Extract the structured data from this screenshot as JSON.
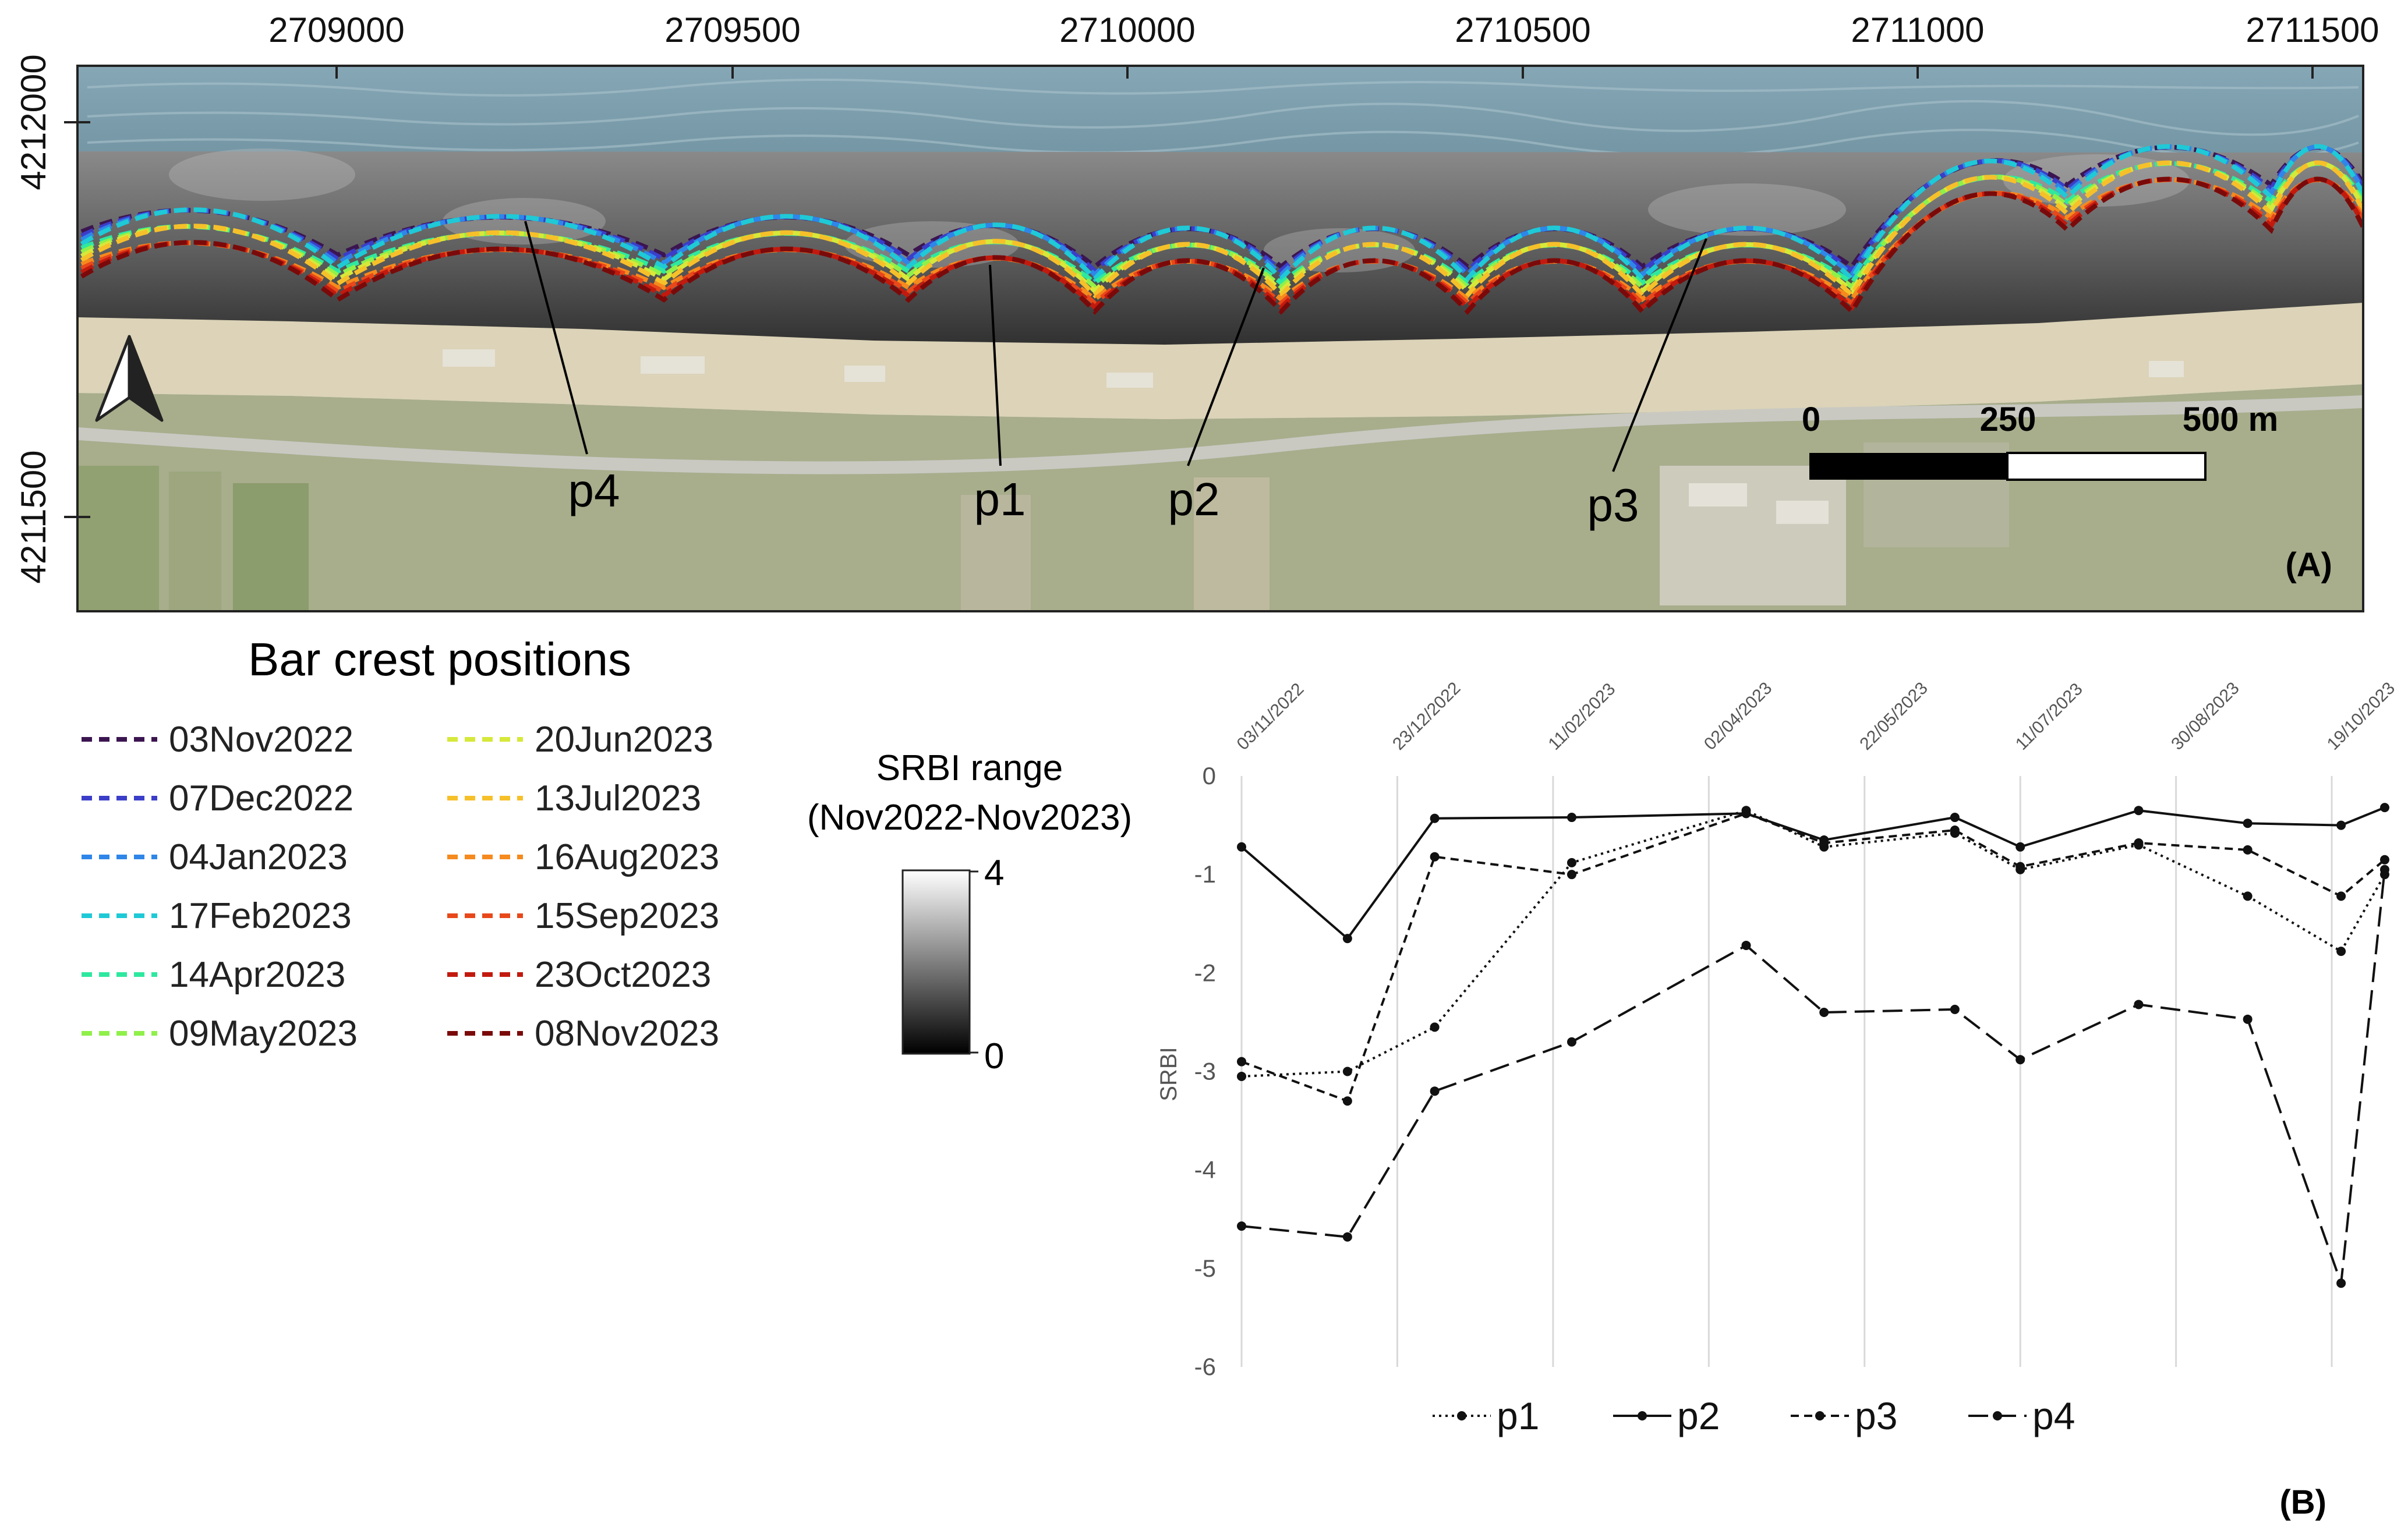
{
  "map": {
    "panel_label": "(A)",
    "x_ticks": [
      "2709000",
      "2709500",
      "2710000",
      "2710500",
      "2711000",
      "2711500"
    ],
    "y_ticks": [
      "4212000",
      "4211500"
    ],
    "scale_bar": {
      "labels": [
        "0",
        "250",
        "500 m"
      ]
    },
    "profiles": [
      "p4",
      "p1",
      "p2",
      "p3"
    ],
    "north_arrow": "north-arrow-icon"
  },
  "legend": {
    "title": "Bar crest positions",
    "entries": [
      {
        "label": "03Nov2022",
        "color": "#3b1550"
      },
      {
        "label": "07Dec2022",
        "color": "#3b3ec8"
      },
      {
        "label": "04Jan2023",
        "color": "#2f86e8"
      },
      {
        "label": "17Feb2023",
        "color": "#1fc9d6"
      },
      {
        "label": "14Apr2023",
        "color": "#2ee8a0"
      },
      {
        "label": "09May2023",
        "color": "#8ff04a"
      },
      {
        "label": "20Jun2023",
        "color": "#d6e83a"
      },
      {
        "label": "13Jul2023",
        "color": "#f6c02a"
      },
      {
        "label": "16Aug2023",
        "color": "#f58a1e"
      },
      {
        "label": "15Sep2023",
        "color": "#e8481a"
      },
      {
        "label": "23Oct2023",
        "color": "#c21a0e"
      },
      {
        "label": "08Nov2023",
        "color": "#7a0a0a"
      }
    ]
  },
  "colorbar": {
    "title_line1": "SRBI range",
    "title_line2": "(Nov2022-Nov2023)",
    "max": "4",
    "min": "0"
  },
  "chart_data": {
    "type": "line",
    "title": "",
    "panel_label": "(B)",
    "ylabel": "SRBI",
    "xlabel": "",
    "ylim": [
      -6,
      0
    ],
    "y_ticks": [
      0,
      -1,
      -2,
      -3,
      -4,
      -5,
      -6
    ],
    "x_tick_labels": [
      "03/11/2022",
      "23/12/2022",
      "11/02/2023",
      "02/04/2023",
      "22/05/2023",
      "11/07/2023",
      "30/08/2023",
      "19/10/2023"
    ],
    "x_tick_days": [
      0,
      50,
      100,
      150,
      200,
      250,
      300,
      350
    ],
    "x_range_days": [
      0,
      367
    ],
    "x_days": [
      0,
      34,
      62,
      106,
      162,
      187,
      229,
      250,
      288,
      323,
      353,
      367
    ],
    "series": [
      {
        "name": "p1",
        "style": "dotted",
        "values": [
          -3.05,
          -3.0,
          -2.55,
          -0.88,
          -0.35,
          -0.72,
          -0.58,
          -0.95,
          -0.7,
          -1.22,
          -1.78,
          -1.0
        ]
      },
      {
        "name": "p2",
        "style": "solid",
        "values": [
          -0.72,
          -1.65,
          -0.43,
          -0.42,
          -0.38,
          -0.65,
          -0.42,
          -0.72,
          -0.35,
          -0.48,
          -0.5,
          -0.32
        ]
      },
      {
        "name": "p3",
        "style": "short-dash",
        "values": [
          -2.9,
          -3.3,
          -0.82,
          -1.0,
          -0.38,
          -0.68,
          -0.55,
          -0.92,
          -0.68,
          -0.75,
          -1.22,
          -0.85
        ]
      },
      {
        "name": "p4",
        "style": "long-dash",
        "values": [
          -4.57,
          -4.68,
          -3.2,
          -2.7,
          -1.72,
          -2.4,
          -2.37,
          -2.88,
          -2.32,
          -2.47,
          -5.15,
          -0.95
        ]
      }
    ]
  }
}
